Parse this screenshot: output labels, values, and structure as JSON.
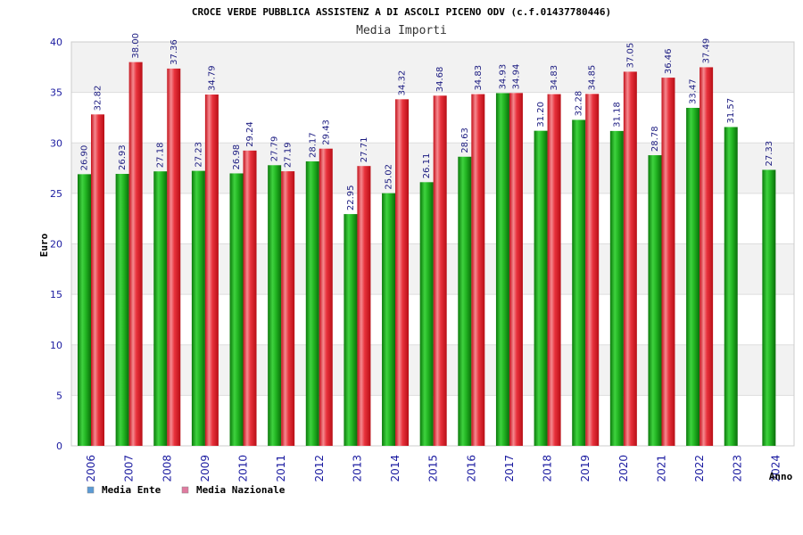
{
  "chart_data": {
    "type": "bar",
    "title": "CROCE VERDE PUBBLICA ASSISTENZ A DI ASCOLI PICENO ODV (c.f.01437780446)",
    "subtitle": "Media Importi",
    "xlabel": "Anno",
    "ylabel": "Euro",
    "ylim": [
      0,
      40
    ],
    "yticks": [
      0,
      5,
      10,
      15,
      20,
      25,
      30,
      35,
      40
    ],
    "grid": true,
    "legend_position": "bottom-left",
    "categories": [
      "2006",
      "2007",
      "2008",
      "2009",
      "2010",
      "2011",
      "2012",
      "2013",
      "2014",
      "2015",
      "2016",
      "2017",
      "2018",
      "2019",
      "2020",
      "2021",
      "2022",
      "2023",
      "2024"
    ],
    "series": [
      {
        "name": "Media Ente",
        "color": "#1fb31f",
        "legend_color": "#5b9bd5",
        "values": [
          26.9,
          26.93,
          27.18,
          27.23,
          26.98,
          27.79,
          28.17,
          22.95,
          25.02,
          26.11,
          28.63,
          34.93,
          31.2,
          32.28,
          31.18,
          28.78,
          33.47,
          31.57,
          27.33
        ],
        "labels": [
          "26.90",
          "26.93",
          "27.18",
          "27.23",
          "26.98",
          "27.79",
          "28.17",
          "22.95",
          "25.02",
          "26.11",
          "28.63",
          "34.93",
          "31.20",
          "32.28",
          "31.18",
          "28.78",
          "33.47",
          "31.57",
          "27.33"
        ]
      },
      {
        "name": "Media Nazionale",
        "color": "#e8323c",
        "legend_color": "#e07aa0",
        "values": [
          32.82,
          38.0,
          37.36,
          34.79,
          29.24,
          27.19,
          29.43,
          27.71,
          34.32,
          34.68,
          34.83,
          34.94,
          34.83,
          34.85,
          37.05,
          36.46,
          37.49,
          null,
          null
        ],
        "labels": [
          "32.82",
          "38.00",
          "37.36",
          "34.79",
          "29.24",
          "27.19",
          "29.43",
          "27.71",
          "34.32",
          "34.68",
          "34.83",
          "34.94",
          "34.83",
          "34.85",
          "37.05",
          "36.46",
          "37.49",
          null,
          null
        ]
      }
    ]
  }
}
